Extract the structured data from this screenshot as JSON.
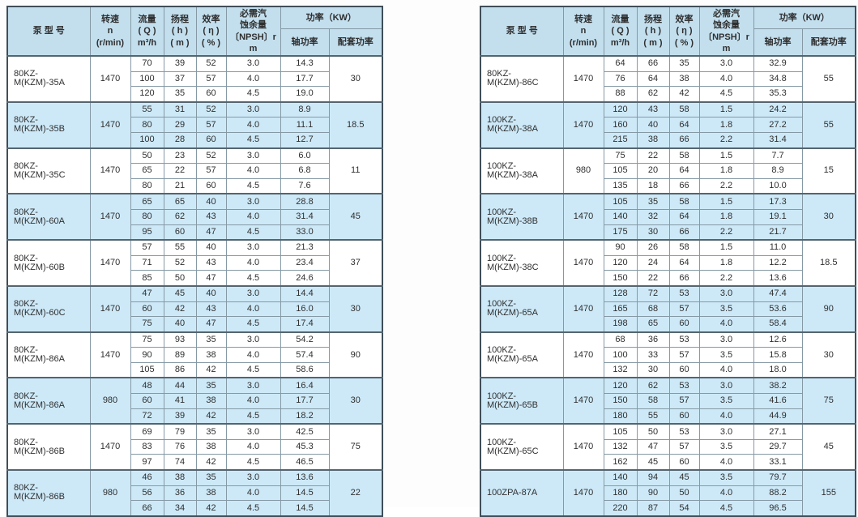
{
  "header": {
    "model": "泵  型  号",
    "speed": "转速\nn\n(r/min)",
    "flow": "流量\n( Q )\nm³/h",
    "head": "扬程\n( h )\n( m )",
    "efficiency": "效率\n( η )\n( % )",
    "npsh": "必需汽\n蚀余量\n〔NPSH〕r\nm",
    "power": "功率（KW）",
    "shaft_power": "轴功率",
    "matched_power": "配套功率"
  },
  "colors": {
    "header_bg": "#c3dfee",
    "shaded_row_bg": "#cde9f8",
    "outer_border": "#3f4e58",
    "group_line": "#54656f",
    "grid_line": "#8599a5",
    "text": "#2f2f2f"
  },
  "tables": [
    {
      "name": "left",
      "groups": [
        {
          "model": "80KZ-M(KZM)-35A",
          "speed": "1470",
          "rows": [
            [
              "70",
              "39",
              "52",
              "3.0",
              "14.3"
            ],
            [
              "100",
              "37",
              "57",
              "4.0",
              "17.7"
            ],
            [
              "120",
              "35",
              "60",
              "4.5",
              "19.0"
            ]
          ],
          "matched": "30"
        },
        {
          "model": "80KZ-M(KZM)-35B",
          "speed": "1470",
          "rows": [
            [
              "55",
              "31",
              "52",
              "3.0",
              "8.9"
            ],
            [
              "80",
              "29",
              "57",
              "4.0",
              "11.1"
            ],
            [
              "100",
              "28",
              "60",
              "4.5",
              "12.7"
            ]
          ],
          "matched": "18.5"
        },
        {
          "model": "80KZ-M(KZM)-35C",
          "speed": "1470",
          "rows": [
            [
              "50",
              "23",
              "52",
              "3.0",
              "6.0"
            ],
            [
              "65",
              "22",
              "57",
              "4.0",
              "6.8"
            ],
            [
              "80",
              "21",
              "60",
              "4.5",
              "7.6"
            ]
          ],
          "matched": "11"
        },
        {
          "model": "80KZ-M(KZM)-60A",
          "speed": "1470",
          "rows": [
            [
              "65",
              "65",
              "40",
              "3.0",
              "28.8"
            ],
            [
              "80",
              "62",
              "43",
              "4.0",
              "31.4"
            ],
            [
              "95",
              "60",
              "47",
              "4.5",
              "33.0"
            ]
          ],
          "matched": "45"
        },
        {
          "model": "80KZ-M(KZM)-60B",
          "speed": "1470",
          "rows": [
            [
              "57",
              "55",
              "40",
              "3.0",
              "21.3"
            ],
            [
              "71",
              "52",
              "43",
              "4.0",
              "23.4"
            ],
            [
              "85",
              "50",
              "47",
              "4.5",
              "24.6"
            ]
          ],
          "matched": "37"
        },
        {
          "model": "80KZ-M(KZM)-60C",
          "speed": "1470",
          "rows": [
            [
              "47",
              "45",
              "40",
              "3.0",
              "14.4"
            ],
            [
              "60",
              "42",
              "43",
              "4.0",
              "16.0"
            ],
            [
              "75",
              "40",
              "47",
              "4.5",
              "17.4"
            ]
          ],
          "matched": "30"
        },
        {
          "model": "80KZ-M(KZM)-86A",
          "speed": "1470",
          "rows": [
            [
              "75",
              "93",
              "35",
              "3.0",
              "54.2"
            ],
            [
              "90",
              "89",
              "38",
              "4.0",
              "57.4"
            ],
            [
              "105",
              "86",
              "42",
              "4.5",
              "58.6"
            ]
          ],
          "matched": "90"
        },
        {
          "model": "80KZ-M(KZM)-86A",
          "speed": "980",
          "rows": [
            [
              "48",
              "44",
              "35",
              "3.0",
              "16.4"
            ],
            [
              "60",
              "41",
              "38",
              "4.0",
              "17.7"
            ],
            [
              "72",
              "39",
              "42",
              "4.5",
              "18.2"
            ]
          ],
          "matched": "30"
        },
        {
          "model": "80KZ-M(KZM)-86B",
          "speed": "1470",
          "rows": [
            [
              "69",
              "79",
              "35",
              "3.0",
              "42.5"
            ],
            [
              "83",
              "76",
              "38",
              "4.0",
              "45.3"
            ],
            [
              "97",
              "74",
              "42",
              "4.5",
              "46.5"
            ]
          ],
          "matched": "75"
        },
        {
          "model": "80KZ-M(KZM)-86B",
          "speed": "980",
          "rows": [
            [
              "46",
              "38",
              "35",
              "3.0",
              "13.6"
            ],
            [
              "56",
              "36",
              "38",
              "4.0",
              "14.5"
            ],
            [
              "66",
              "34",
              "42",
              "4.5",
              "14.5"
            ]
          ],
          "matched": "22"
        }
      ]
    },
    {
      "name": "right",
      "groups": [
        {
          "model": "80KZ-M(KZM)-86C",
          "speed": "1470",
          "rows": [
            [
              "64",
              "66",
              "35",
              "3.0",
              "32.9"
            ],
            [
              "76",
              "64",
              "38",
              "4.0",
              "34.8"
            ],
            [
              "88",
              "62",
              "42",
              "4.5",
              "35.3"
            ]
          ],
          "matched": "55"
        },
        {
          "model": "100KZ-M(KZM)-38A",
          "speed": "1470",
          "rows": [
            [
              "120",
              "43",
              "58",
              "1.5",
              "24.2"
            ],
            [
              "160",
              "40",
              "64",
              "1.8",
              "27.2"
            ],
            [
              "215",
              "38",
              "66",
              "2.2",
              "31.4"
            ]
          ],
          "matched": "55"
        },
        {
          "model": "100KZ-M(KZM)-38A",
          "speed": "980",
          "rows": [
            [
              "75",
              "22",
              "58",
              "1.5",
              "7.7"
            ],
            [
              "105",
              "20",
              "64",
              "1.8",
              "8.9"
            ],
            [
              "135",
              "18",
              "66",
              "2.2",
              "10.0"
            ]
          ],
          "matched": "15"
        },
        {
          "model": "100KZ-M(KZM)-38B",
          "speed": "1470",
          "rows": [
            [
              "105",
              "35",
              "58",
              "1.5",
              "17.3"
            ],
            [
              "140",
              "32",
              "64",
              "1.8",
              "19.1"
            ],
            [
              "175",
              "30",
              "66",
              "2.2",
              "21.7"
            ]
          ],
          "matched": "30"
        },
        {
          "model": "100KZ-M(KZM)-38C",
          "speed": "1470",
          "rows": [
            [
              "90",
              "26",
              "58",
              "1.5",
              "11.0"
            ],
            [
              "120",
              "24",
              "64",
              "1.8",
              "12.2"
            ],
            [
              "150",
              "22",
              "66",
              "2.2",
              "13.6"
            ]
          ],
          "matched": "18.5"
        },
        {
          "model": "100KZ-M(KZM)-65A",
          "speed": "1470",
          "rows": [
            [
              "128",
              "72",
              "53",
              "3.0",
              "47.4"
            ],
            [
              "165",
              "68",
              "57",
              "3.5",
              "53.6"
            ],
            [
              "198",
              "65",
              "60",
              "4.0",
              "58.4"
            ]
          ],
          "matched": "90"
        },
        {
          "model": "100KZ-M(KZM)-65A",
          "speed": "1470",
          "rows": [
            [
              "68",
              "36",
              "53",
              "3.0",
              "12.6"
            ],
            [
              "100",
              "33",
              "57",
              "3.5",
              "15.8"
            ],
            [
              "132",
              "30",
              "60",
              "4.0",
              "18.0"
            ]
          ],
          "matched": "30"
        },
        {
          "model": "100KZ-M(KZM)-65B",
          "speed": "1470",
          "rows": [
            [
              "120",
              "62",
              "53",
              "3.0",
              "38.2"
            ],
            [
              "150",
              "58",
              "57",
              "3.5",
              "41.6"
            ],
            [
              "180",
              "55",
              "60",
              "4.0",
              "44.9"
            ]
          ],
          "matched": "75"
        },
        {
          "model": "100KZ-M(KZM)-65C",
          "speed": "1470",
          "rows": [
            [
              "105",
              "50",
              "53",
              "3.0",
              "27.1"
            ],
            [
              "132",
              "47",
              "57",
              "3.5",
              "29.7"
            ],
            [
              "162",
              "45",
              "60",
              "4.0",
              "33.1"
            ]
          ],
          "matched": "45"
        },
        {
          "model": "100ZPA-87A",
          "speed": "1470",
          "rows": [
            [
              "140",
              "94",
              "45",
              "3.5",
              "79.7"
            ],
            [
              "180",
              "90",
              "50",
              "4.0",
              "88.2"
            ],
            [
              "220",
              "87",
              "54",
              "4.5",
              "96.5"
            ]
          ],
          "matched": "155"
        }
      ]
    }
  ]
}
